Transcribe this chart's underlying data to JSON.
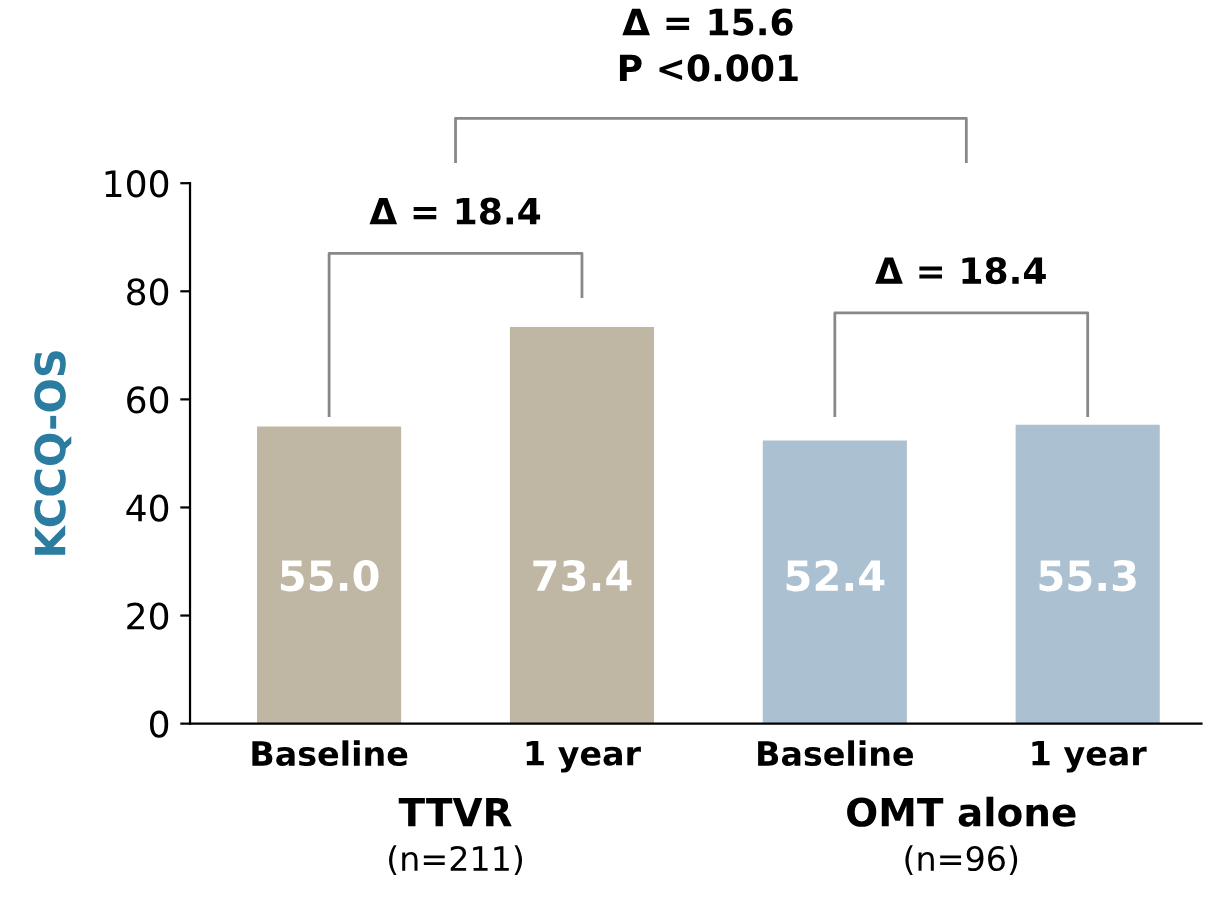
{
  "chart_data": {
    "type": "bar",
    "ylabel": "KCCQ-OS",
    "categories": [
      "Baseline",
      "1 year",
      "Baseline",
      "1 year"
    ],
    "values": [
      55.0,
      73.4,
      52.4,
      55.3
    ],
    "colors": [
      "#bfb6a3",
      "#bfb6a3",
      "#abc0d0",
      "#abc0d0"
    ],
    "value_labels": [
      "55.0",
      "73.4",
      "52.4",
      "55.3"
    ],
    "ylim": [
      0,
      100
    ],
    "yticks": [
      0,
      20,
      40,
      60,
      80,
      100
    ],
    "grid": false,
    "legend": false,
    "annotations": [
      "Δ = 15.6\nP <0.001",
      "Δ = 18.4",
      "Δ = 18.4",
      "TTVR",
      "(n=211)",
      "OMT alone",
      "(n=96)"
    ]
  }
}
